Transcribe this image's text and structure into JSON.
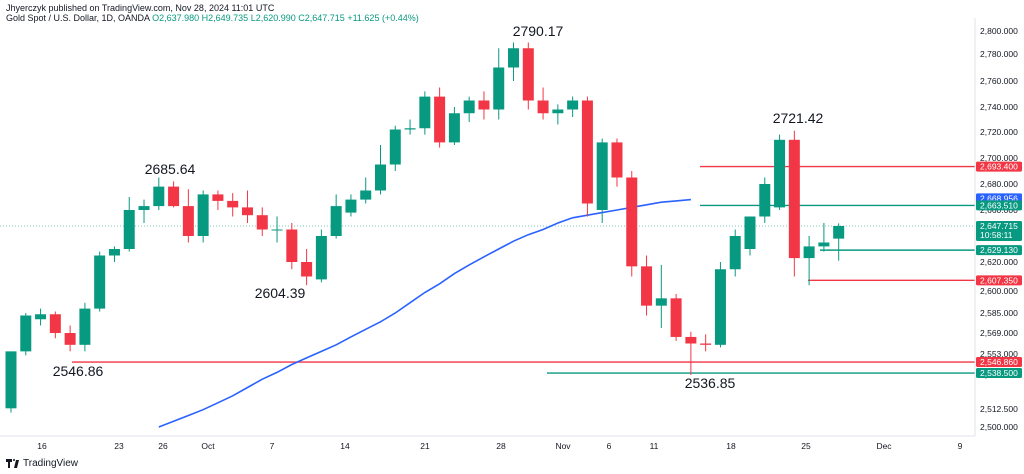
{
  "header": {
    "publisher": "Jhyerczyk published on TradingView.com, Nov 28, 2024 11:01 UTC",
    "symbol": "Gold Spot / U.S. Dollar, 1D, OANDA",
    "open": "O2,637.980",
    "high": "H2,649.735",
    "low": "L2,620.990",
    "close": "C2,647.715",
    "change": "+11.625 (+0.44%)"
  },
  "footer": {
    "brand": "TradingView"
  },
  "colors": {
    "up": "#089981",
    "down": "#f23645",
    "ma": "#2962ff",
    "axis": "#e0e3eb"
  },
  "chart_data": {
    "type": "candlestick",
    "y_axis": {
      "ticks": [
        "2,800.000",
        "2,780.000",
        "2,760.000",
        "2,740.000",
        "2,720.000",
        "2,700.000",
        "2,680.000",
        "2,660.000",
        "2,640.000",
        "2,620.000",
        "2,600.000",
        "2,585.000",
        "2,569.000",
        "2,553.000",
        "2,537.000",
        "2,512.500",
        "2,500.000"
      ]
    },
    "x_axis": {
      "ticks": [
        "16",
        "23",
        "26",
        "Oct",
        "7",
        "14",
        "21",
        "28",
        "Nov",
        "6",
        "11",
        "18",
        "25",
        "Dec",
        "9"
      ]
    },
    "candles": [
      {
        "o": 2513,
        "h": 2555,
        "l": 2510,
        "c": 2555
      },
      {
        "o": 2555,
        "h": 2585,
        "l": 2552,
        "c": 2583
      },
      {
        "o": 2580,
        "h": 2588,
        "l": 2575,
        "c": 2584
      },
      {
        "o": 2584,
        "h": 2586,
        "l": 2565,
        "c": 2569
      },
      {
        "o": 2569,
        "h": 2575,
        "l": 2555,
        "c": 2560
      },
      {
        "o": 2560,
        "h": 2592,
        "l": 2555,
        "c": 2588
      },
      {
        "o": 2588,
        "h": 2628,
        "l": 2586,
        "c": 2625
      },
      {
        "o": 2625,
        "h": 2632,
        "l": 2620,
        "c": 2630
      },
      {
        "o": 2630,
        "h": 2670,
        "l": 2628,
        "c": 2660
      },
      {
        "o": 2660,
        "h": 2668,
        "l": 2650,
        "c": 2663
      },
      {
        "o": 2663,
        "h": 2685,
        "l": 2660,
        "c": 2678
      },
      {
        "o": 2678,
        "h": 2682,
        "l": 2662,
        "c": 2663
      },
      {
        "o": 2663,
        "h": 2676,
        "l": 2635,
        "c": 2640
      },
      {
        "o": 2640,
        "h": 2675,
        "l": 2635,
        "c": 2672
      },
      {
        "o": 2672,
        "h": 2675,
        "l": 2660,
        "c": 2667
      },
      {
        "o": 2667,
        "h": 2673,
        "l": 2655,
        "c": 2662
      },
      {
        "o": 2662,
        "h": 2675,
        "l": 2650,
        "c": 2656
      },
      {
        "o": 2656,
        "h": 2662,
        "l": 2640,
        "c": 2645
      },
      {
        "o": 2645,
        "h": 2655,
        "l": 2635,
        "c": 2645
      },
      {
        "o": 2645,
        "h": 2650,
        "l": 2615,
        "c": 2620
      },
      {
        "o": 2620,
        "h": 2630,
        "l": 2604,
        "c": 2610
      },
      {
        "o": 2608,
        "h": 2645,
        "l": 2606,
        "c": 2640
      },
      {
        "o": 2640,
        "h": 2672,
        "l": 2638,
        "c": 2663
      },
      {
        "o": 2658,
        "h": 2672,
        "l": 2655,
        "c": 2668
      },
      {
        "o": 2668,
        "h": 2685,
        "l": 2665,
        "c": 2675
      },
      {
        "o": 2675,
        "h": 2710,
        "l": 2672,
        "c": 2695
      },
      {
        "o": 2695,
        "h": 2725,
        "l": 2690,
        "c": 2722
      },
      {
        "o": 2722,
        "h": 2730,
        "l": 2718,
        "c": 2723
      },
      {
        "o": 2723,
        "h": 2752,
        "l": 2718,
        "c": 2748
      },
      {
        "o": 2748,
        "h": 2755,
        "l": 2708,
        "c": 2712
      },
      {
        "o": 2712,
        "h": 2740,
        "l": 2710,
        "c": 2735
      },
      {
        "o": 2735,
        "h": 2748,
        "l": 2728,
        "c": 2745
      },
      {
        "o": 2745,
        "h": 2752,
        "l": 2730,
        "c": 2738
      },
      {
        "o": 2738,
        "h": 2785,
        "l": 2730,
        "c": 2770
      },
      {
        "o": 2770,
        "h": 2790,
        "l": 2760,
        "c": 2785
      },
      {
        "o": 2785,
        "h": 2790,
        "l": 2738,
        "c": 2745
      },
      {
        "o": 2745,
        "h": 2755,
        "l": 2730,
        "c": 2735
      },
      {
        "o": 2735,
        "h": 2742,
        "l": 2726,
        "c": 2738
      },
      {
        "o": 2738,
        "h": 2748,
        "l": 2732,
        "c": 2745
      },
      {
        "o": 2745,
        "h": 2748,
        "l": 2655,
        "c": 2665
      },
      {
        "o": 2660,
        "h": 2715,
        "l": 2650,
        "c": 2712
      },
      {
        "o": 2712,
        "h": 2715,
        "l": 2678,
        "c": 2685
      },
      {
        "o": 2685,
        "h": 2690,
        "l": 2610,
        "c": 2617
      },
      {
        "o": 2617,
        "h": 2625,
        "l": 2583,
        "c": 2590
      },
      {
        "o": 2590,
        "h": 2618,
        "l": 2573,
        "c": 2595
      },
      {
        "o": 2595,
        "h": 2598,
        "l": 2563,
        "c": 2566
      },
      {
        "o": 2566,
        "h": 2570,
        "l": 2537,
        "c": 2561
      },
      {
        "o": 2561,
        "h": 2568,
        "l": 2555,
        "c": 2560
      },
      {
        "o": 2560,
        "h": 2620,
        "l": 2558,
        "c": 2615
      },
      {
        "o": 2615,
        "h": 2645,
        "l": 2610,
        "c": 2640
      },
      {
        "o": 2630,
        "h": 2655,
        "l": 2625,
        "c": 2655
      },
      {
        "o": 2655,
        "h": 2685,
        "l": 2650,
        "c": 2680
      },
      {
        "o": 2662,
        "h": 2718,
        "l": 2660,
        "c": 2714
      },
      {
        "o": 2714,
        "h": 2721,
        "l": 2610,
        "c": 2623
      },
      {
        "o": 2623,
        "h": 2640,
        "l": 2604,
        "c": 2632
      },
      {
        "o": 2632,
        "h": 2650,
        "l": 2628,
        "c": 2635
      },
      {
        "o": 2637.98,
        "h": 2649.735,
        "l": 2620.99,
        "c": 2647.715
      }
    ],
    "moving_average": [
      2500,
      2504,
      2508,
      2512,
      2517,
      2522,
      2528,
      2534,
      2539,
      2545,
      2550,
      2555,
      2560,
      2566,
      2572,
      2578,
      2585,
      2592,
      2599,
      2605,
      2612,
      2618,
      2624,
      2630,
      2636,
      2641,
      2645,
      2650,
      2654,
      2656,
      2658,
      2660,
      2662,
      2664,
      2666,
      2667,
      2668
    ],
    "annotations": [
      {
        "label": "2790.17",
        "value": 2790.17
      },
      {
        "label": "2721.42",
        "value": 2721.42
      },
      {
        "label": "2685.64",
        "value": 2685.64
      },
      {
        "label": "2604.39",
        "value": 2604.39
      },
      {
        "label": "2546.86",
        "value": 2546.86
      },
      {
        "label": "2536.85",
        "value": 2536.85
      }
    ],
    "levels": [
      {
        "label": "2,693.400",
        "value": 2693.4,
        "color": "#f23645"
      },
      {
        "label": "2,668.956",
        "value": 2668.956,
        "color": "#2962ff"
      },
      {
        "label": "2,663.510",
        "value": 2663.51,
        "color": "#089981"
      },
      {
        "label": "2,647.715",
        "value": 2647.715,
        "color": "#089981",
        "sub": "10:58:11"
      },
      {
        "label": "2,629.130",
        "value": 2629.13,
        "color": "#089981"
      },
      {
        "label": "2,607.350",
        "value": 2607.35,
        "color": "#f23645"
      },
      {
        "label": "2,546.860",
        "value": 2546.86,
        "color": "#f23645"
      },
      {
        "label": "2,538.500",
        "value": 2538.5,
        "color": "#089981"
      }
    ]
  }
}
